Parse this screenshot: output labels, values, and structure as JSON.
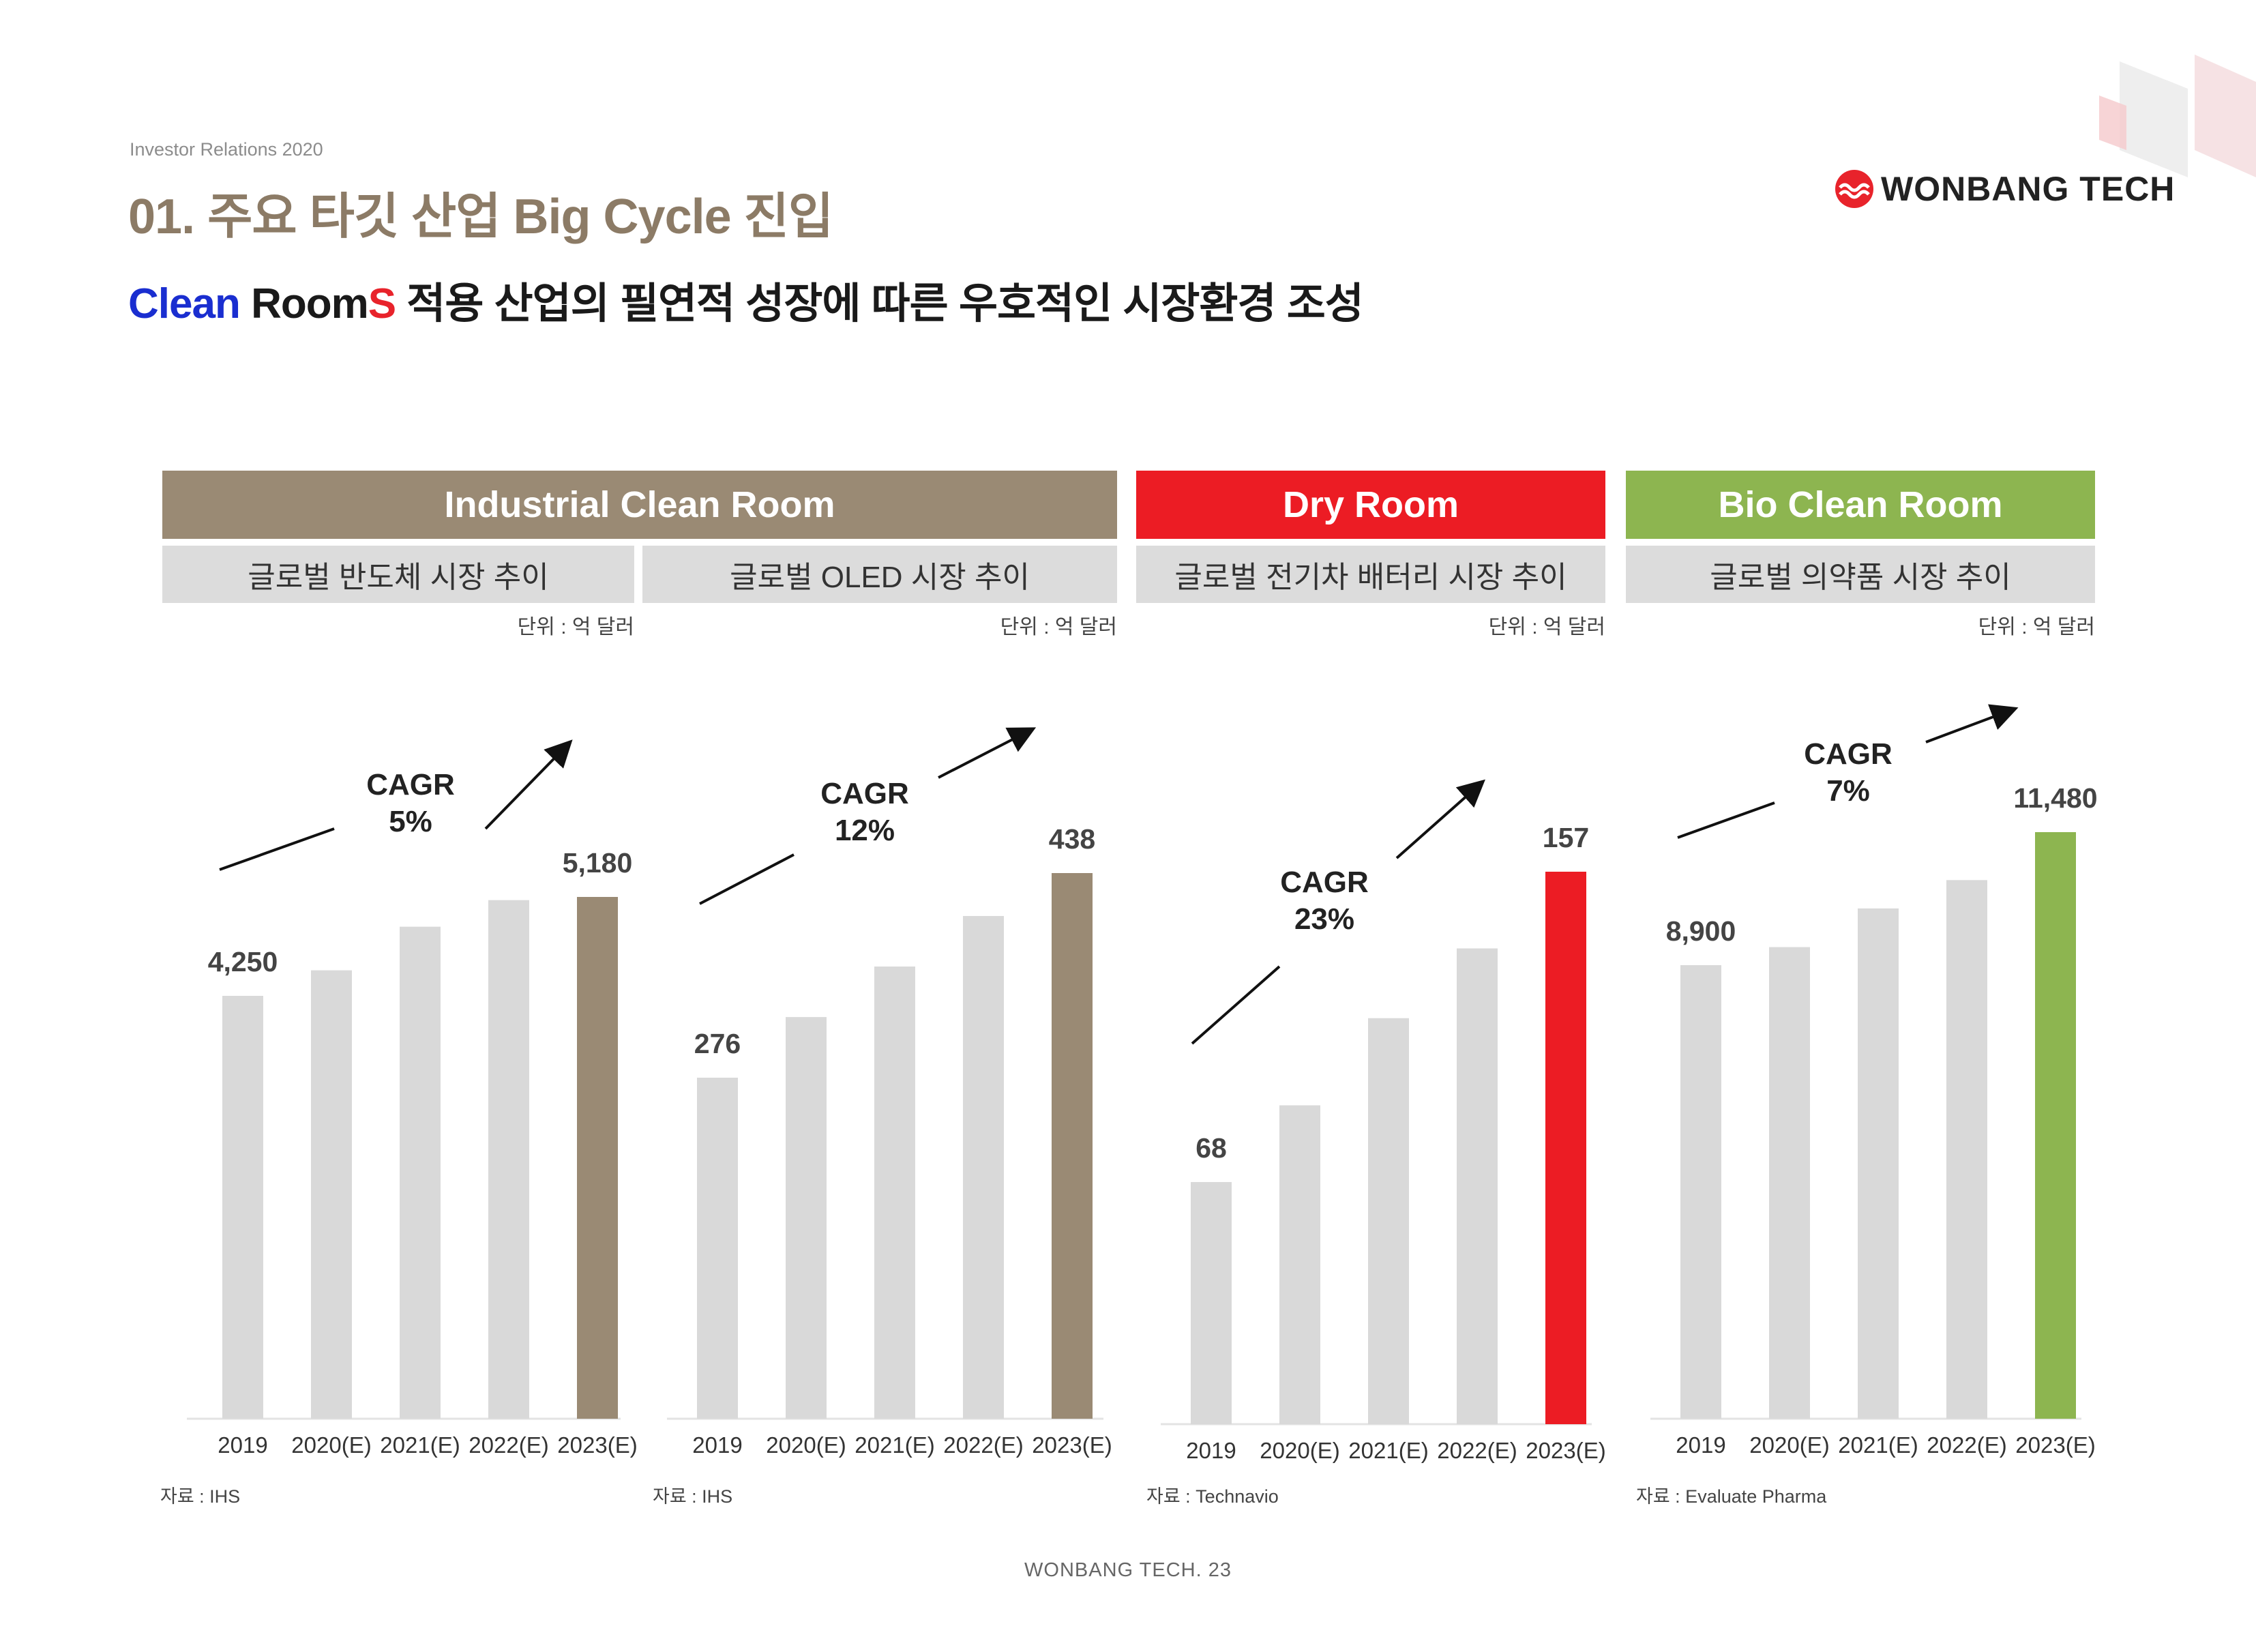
{
  "header": {
    "ir_label": "Investor Relations 2020",
    "title": "01. 주요 타깃 산업 Big Cycle 진입",
    "subtitle": {
      "word1": "Clean",
      "word2": " Room",
      "word3": "S",
      "rest": " 적용 산업의 필연적 성장에 따른 우호적인 시장환경 조성"
    },
    "logo_text": "WONBANG TECH"
  },
  "categories": {
    "industrial": "Industrial Clean Room",
    "dry": "Dry Room",
    "bio": "Bio Clean Room"
  },
  "colors": {
    "industrial": "#9a8a74",
    "dry": "#ec1c24",
    "bio": "#8db550",
    "bar_grey": "#d9d9d9",
    "subtitle_blue": "#1a2ed0",
    "subtitle_red": "#e8232b"
  },
  "footer": "WONBANG TECH. 23",
  "chart_data": [
    {
      "type": "bar",
      "title": "글로벌 반도체 시장 추이",
      "unit": "단위 : 억 달러",
      "source": "자료 : IHS",
      "categories": [
        "2019",
        "2020(E)",
        "2021(E)",
        "2022(E)",
        "2023(E)"
      ],
      "values": [
        4250,
        4490,
        4900,
        5150,
        5180
      ],
      "labels": [
        "4,250",
        "",
        "",
        "",
        "5,180"
      ],
      "cagr": [
        "CAGR",
        "5%"
      ],
      "highlight_color": "#9a8a74"
    },
    {
      "type": "bar",
      "title": "글로벌 OLED 시장 추이",
      "unit": "단위 : 억 달러",
      "source": "자료 : IHS",
      "categories": [
        "2019",
        "2020(E)",
        "2021(E)",
        "2022(E)",
        "2023(E)"
      ],
      "values": [
        276,
        324,
        364,
        404,
        438
      ],
      "labels": [
        "276",
        "",
        "",
        "",
        "438"
      ],
      "cagr": [
        "CAGR",
        "12%"
      ],
      "highlight_color": "#9a8a74"
    },
    {
      "type": "bar",
      "title": "글로벌 전기차 배터리 시장 추이",
      "unit": "단위 : 억 달러",
      "source": "자료 : Technavio",
      "categories": [
        "2019",
        "2020(E)",
        "2021(E)",
        "2022(E)",
        "2023(E)"
      ],
      "values": [
        68,
        90,
        115,
        135,
        157
      ],
      "labels": [
        "68",
        "",
        "",
        "",
        "157"
      ],
      "cagr": [
        "CAGR",
        "23%"
      ],
      "highlight_color": "#ec1c24"
    },
    {
      "type": "bar",
      "title": "글로벌 의약품 시장 추이",
      "unit": "단위 : 억 달러",
      "source": "자료 : Evaluate Pharma",
      "categories": [
        "2019",
        "2020(E)",
        "2021(E)",
        "2022(E)",
        "2023(E)"
      ],
      "values": [
        8900,
        9250,
        10000,
        10550,
        11480
      ],
      "labels": [
        "8,900",
        "",
        "",
        "",
        "11,480"
      ],
      "cagr": [
        "CAGR",
        "7%"
      ],
      "highlight_color": "#8db550"
    }
  ]
}
